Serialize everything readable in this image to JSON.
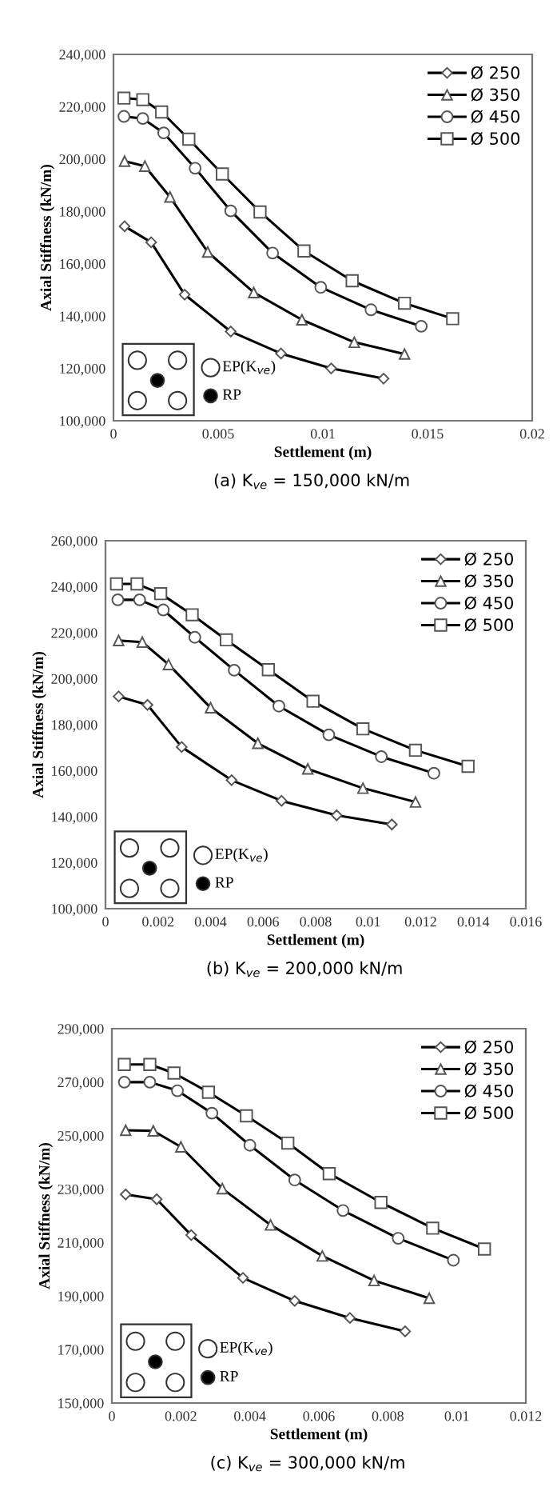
{
  "chart_data": [
    {
      "type": "line",
      "xlabel": "Settlement (m)",
      "ylabel": "Axial Stiffness (kN/m)",
      "xlim": [
        0,
        0.02
      ],
      "xticks": [
        0,
        0.005,
        0.01,
        0.015,
        0.02
      ],
      "ylim": [
        100000,
        240000
      ],
      "yticks": [
        {
          "value": 100000,
          "label": "100,000"
        },
        {
          "value": 120000,
          "label": "120,000"
        },
        {
          "value": 140000,
          "label": "140,000"
        },
        {
          "value": 160000,
          "label": "160,000"
        },
        {
          "value": 180000,
          "label": "180,000"
        },
        {
          "value": 200000,
          "label": "200,000"
        },
        {
          "value": 220000,
          "label": "220,000"
        },
        {
          "value": 240000,
          "label": "240,000"
        }
      ],
      "legend": "top right",
      "grid": false,
      "line_style": "solid",
      "annotations": [
        "(a) K$_{ve}$ = 150,000 kN/m",
        "EP(K$_{ve}$)",
        "RP"
      ],
      "series": [
        {
          "name": "Ø 250",
          "color": "#000000",
          "marker": "diamond",
          "x": [
            0.00053,
            0.0018,
            0.0034,
            0.0056,
            0.008,
            0.0104,
            0.0129
          ],
          "values": [
            174300,
            168200,
            148200,
            134100,
            125700,
            120000,
            116100
          ]
        },
        {
          "name": "Ø 350",
          "color": "#000000",
          "marker": "triangle",
          "x": [
            0.00053,
            0.0015,
            0.0027,
            0.0045,
            0.0067,
            0.009,
            0.0115,
            0.0139
          ],
          "values": [
            199200,
            197300,
            185500,
            164500,
            149000,
            138600,
            130000,
            125500
          ]
        },
        {
          "name": "Ø 450",
          "color": "#000000",
          "marker": "circle",
          "x": [
            0.0005,
            0.0014,
            0.0024,
            0.0039,
            0.0056,
            0.0076,
            0.0099,
            0.0123,
            0.0147
          ],
          "values": [
            216300,
            215500,
            210000,
            196500,
            180200,
            164100,
            151000,
            142400,
            136100
          ]
        },
        {
          "name": "Ø 500",
          "color": "#000000",
          "marker": "square",
          "x": [
            0.0005,
            0.0014,
            0.0023,
            0.0036,
            0.0052,
            0.007,
            0.0091,
            0.0114,
            0.0139,
            0.0162
          ],
          "values": [
            223300,
            222700,
            218000,
            207600,
            194300,
            179800,
            164900,
            153500,
            144900,
            139000
          ]
        }
      ]
    },
    {
      "type": "line",
      "xlabel": "Settlement (m)",
      "ylabel": "Axial Stiffness (kN/m)",
      "xlim": [
        0,
        0.016
      ],
      "xticks": [
        0,
        0.002,
        0.004,
        0.006,
        0.008,
        0.01,
        0.012,
        0.014,
        0.016
      ],
      "ylim": [
        100000,
        260000
      ],
      "yticks": [
        {
          "value": 100000,
          "label": "100,000"
        },
        {
          "value": 120000,
          "label": "120,000"
        },
        {
          "value": 140000,
          "label": "140,000"
        },
        {
          "value": 160000,
          "label": "160,000"
        },
        {
          "value": 180000,
          "label": "180,000"
        },
        {
          "value": 200000,
          "label": "200,000"
        },
        {
          "value": 220000,
          "label": "220,000"
        },
        {
          "value": 240000,
          "label": "240,000"
        },
        {
          "value": 260000,
          "label": "260,000"
        }
      ],
      "legend": "top right",
      "grid": false,
      "line_style": "solid",
      "annotations": [
        "(b) K$_{ve}$ = 200,000 kN/m",
        "EP(K$_{ve}$)",
        "RP"
      ],
      "series": [
        {
          "name": "Ø 250",
          "color": "#000000",
          "marker": "diamond",
          "x": [
            0.0005,
            0.0016,
            0.0029,
            0.0048,
            0.0067,
            0.0088,
            0.0109
          ],
          "values": [
            192300,
            188600,
            170300,
            155900,
            146900,
            140600,
            136600
          ]
        },
        {
          "name": "Ø 350",
          "color": "#000000",
          "marker": "triangle",
          "x": [
            0.0005,
            0.0014,
            0.0024,
            0.004,
            0.0058,
            0.0077,
            0.0098,
            0.0118
          ],
          "values": [
            216600,
            215900,
            206200,
            187400,
            171900,
            160800,
            152400,
            146400
          ]
        },
        {
          "name": "Ø 450",
          "color": "#000000",
          "marker": "circle",
          "x": [
            0.00047,
            0.0013,
            0.0022,
            0.0034,
            0.0049,
            0.0066,
            0.0085,
            0.0105,
            0.0125
          ],
          "values": [
            234300,
            234300,
            229900,
            218000,
            203700,
            188100,
            175600,
            166100,
            158900
          ]
        },
        {
          "name": "Ø 500",
          "color": "#000000",
          "marker": "square",
          "x": [
            0.00042,
            0.0012,
            0.0021,
            0.0033,
            0.0046,
            0.0062,
            0.0079,
            0.0098,
            0.0118,
            0.0138
          ],
          "values": [
            241200,
            241200,
            237000,
            227800,
            216900,
            203900,
            190200,
            178200,
            168900,
            161900
          ]
        }
      ]
    },
    {
      "type": "line",
      "xlabel": "Settlement (m)",
      "ylabel": "Axial Stiffness (kN/m)",
      "xlim": [
        0,
        0.012
      ],
      "xticks": [
        0,
        0.002,
        0.004,
        0.006,
        0.008,
        0.01,
        0.012
      ],
      "ylim": [
        150000,
        290000
      ],
      "yticks": [
        {
          "value": 150000,
          "label": "150,000"
        },
        {
          "value": 170000,
          "label": "170,000"
        },
        {
          "value": 190000,
          "label": "190,000"
        },
        {
          "value": 210000,
          "label": "210,000"
        },
        {
          "value": 230000,
          "label": "230,000"
        },
        {
          "value": 250000,
          "label": "250,000"
        },
        {
          "value": 270000,
          "label": "270,000"
        },
        {
          "value": 290000,
          "label": "290,000"
        }
      ],
      "legend": "top right",
      "grid": false,
      "line_style": "solid",
      "annotations": [
        "(c) K$_{ve}$ = 300,000 kN/m",
        "EP(K$_{ve}$)",
        "RP"
      ],
      "series": [
        {
          "name": "Ø 250",
          "color": "#000000",
          "marker": "diamond",
          "x": [
            0.0004,
            0.0013,
            0.0023,
            0.0038,
            0.0053,
            0.0069,
            0.0085
          ],
          "values": [
            228000,
            226200,
            212800,
            196800,
            188200,
            181800,
            176800
          ]
        },
        {
          "name": "Ø 350",
          "color": "#000000",
          "marker": "triangle",
          "x": [
            0.0004,
            0.0012,
            0.002,
            0.0032,
            0.0046,
            0.0061,
            0.0076,
            0.0092
          ],
          "values": [
            252000,
            251800,
            245800,
            230200,
            216600,
            205000,
            195800,
            189200
          ]
        },
        {
          "name": "Ø 450",
          "color": "#000000",
          "marker": "circle",
          "x": [
            0.00036,
            0.0011,
            0.0019,
            0.0029,
            0.004,
            0.0053,
            0.0067,
            0.0083,
            0.0099
          ],
          "values": [
            270000,
            270000,
            266800,
            258400,
            246400,
            233400,
            222000,
            211600,
            203400
          ]
        },
        {
          "name": "Ø 500",
          "color": "#000000",
          "marker": "square",
          "x": [
            0.00036,
            0.0011,
            0.0018,
            0.0028,
            0.0039,
            0.0051,
            0.0063,
            0.0078,
            0.0093,
            0.0108
          ],
          "values": [
            276600,
            276600,
            273400,
            266200,
            257400,
            247200,
            235800,
            225000,
            215400,
            207600
          ]
        }
      ]
    }
  ]
}
